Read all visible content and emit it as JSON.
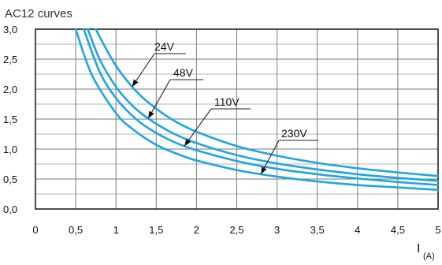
{
  "chart_data": {
    "type": "line",
    "title": "AC12 curves",
    "xlabel": "I",
    "xlabel_unit": "(A)",
    "ylabel": "",
    "xlim": [
      0,
      5
    ],
    "ylim": [
      0,
      3
    ],
    "x_ticks": [
      "0",
      "0,5",
      "1",
      "1,5",
      "2",
      "2,5",
      "3",
      "3,5",
      "4",
      "4,5",
      "5"
    ],
    "y_ticks": [
      "0,0",
      "0,5",
      "1,0",
      "1,5",
      "2,0",
      "2,5",
      "3,0"
    ],
    "grid": true,
    "colors": {
      "curve": "#1ea6df",
      "grid": "#7a7a7a",
      "axis": "#222222"
    },
    "series": [
      {
        "name": "24V",
        "x": [
          0.75,
          0.85,
          1.0,
          1.2,
          1.4,
          1.7,
          2.0,
          2.5,
          3.0,
          3.5,
          4.0,
          4.5,
          5.0
        ],
        "y": [
          3.0,
          2.74,
          2.39,
          2.04,
          1.78,
          1.49,
          1.29,
          1.05,
          0.89,
          0.77,
          0.68,
          0.61,
          0.55
        ]
      },
      {
        "name": "48V",
        "x": [
          0.65,
          0.8,
          1.0,
          1.2,
          1.4,
          1.7,
          2.0,
          2.5,
          3.0,
          3.5,
          4.0,
          4.5,
          5.0
        ],
        "y": [
          3.0,
          2.49,
          2.04,
          1.73,
          1.51,
          1.27,
          1.1,
          0.9,
          0.76,
          0.66,
          0.58,
          0.52,
          0.47
        ]
      },
      {
        "name": "110V",
        "x": [
          0.6,
          0.8,
          1.0,
          1.2,
          1.4,
          1.7,
          2.0,
          2.5,
          3.0,
          3.5,
          4.0,
          4.5,
          5.0
        ],
        "y": [
          3.0,
          2.28,
          1.85,
          1.56,
          1.35,
          1.13,
          0.98,
          0.8,
          0.67,
          0.58,
          0.51,
          0.45,
          0.4
        ]
      },
      {
        "name": "230V",
        "x": [
          0.5,
          0.7,
          1.0,
          1.2,
          1.5,
          1.8,
          2.0,
          2.5,
          3.0,
          3.5,
          4.0,
          4.5,
          5.0
        ],
        "y": [
          3.0,
          2.24,
          1.6,
          1.34,
          1.07,
          0.9,
          0.81,
          0.65,
          0.54,
          0.46,
          0.4,
          0.36,
          0.32
        ]
      }
    ],
    "annotations": [
      {
        "label": "24V",
        "arrow_to": [
          1.2,
          2.04
        ]
      },
      {
        "label": "48V",
        "arrow_to": [
          1.4,
          1.51
        ]
      },
      {
        "label": "110V",
        "arrow_to": [
          1.85,
          1.05
        ]
      },
      {
        "label": "230V",
        "arrow_to": [
          2.8,
          0.58
        ]
      }
    ]
  }
}
